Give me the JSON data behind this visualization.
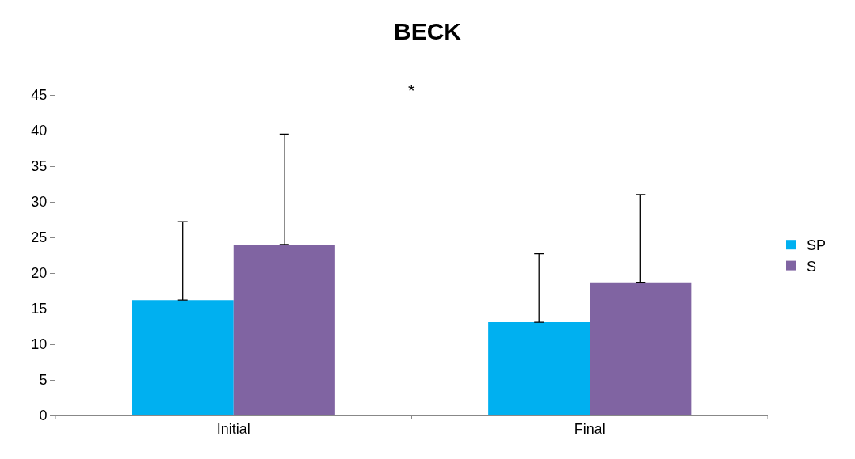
{
  "chart_data": {
    "type": "bar",
    "title": "BECK",
    "categories": [
      "Initial",
      "Final"
    ],
    "series": [
      {
        "name": "SP",
        "color": "#00b0f0",
        "values": [
          16.2,
          13.1
        ],
        "errors": [
          [
            16.2,
            27.2
          ],
          [
            13.1,
            22.7
          ]
        ]
      },
      {
        "name": "S",
        "color": "#8064a2",
        "values": [
          24.0,
          18.7
        ],
        "errors": [
          [
            24.0,
            39.5
          ],
          [
            18.7,
            31.0
          ]
        ]
      }
    ],
    "ylim": [
      0,
      45
    ],
    "yticks": [
      0,
      5,
      10,
      15,
      20,
      25,
      30,
      35,
      40,
      45
    ],
    "legend": "right",
    "annotations": [
      "*"
    ]
  }
}
